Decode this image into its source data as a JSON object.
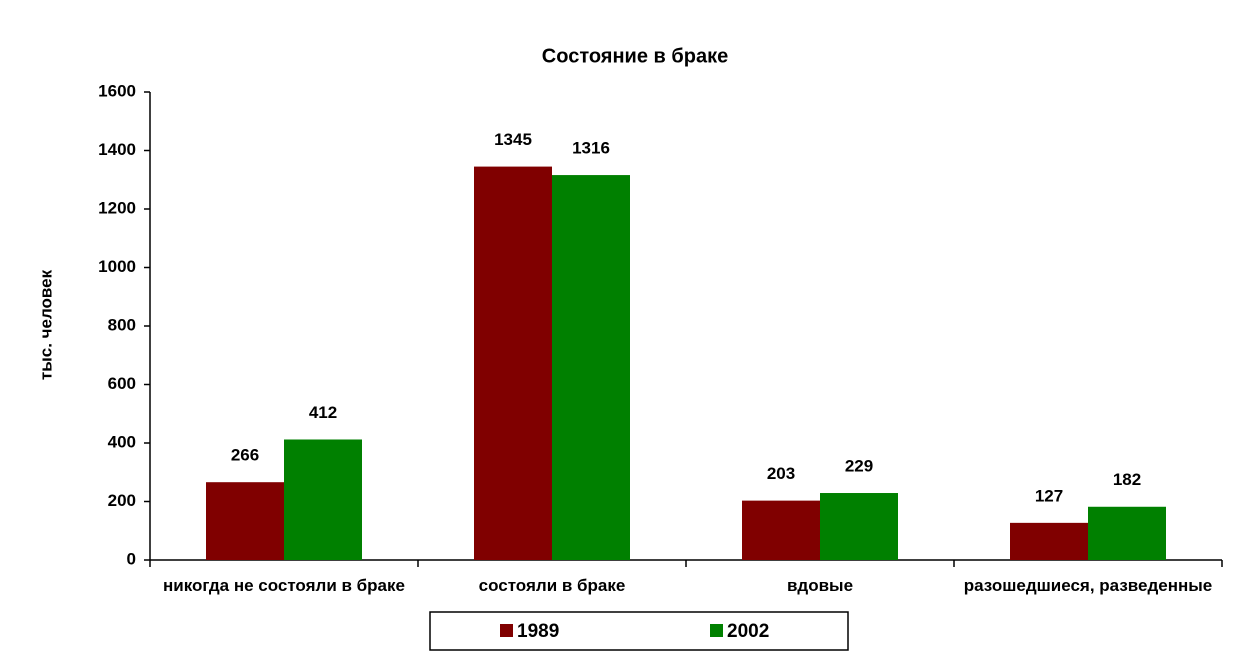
{
  "chart_data": {
    "type": "bar",
    "title": "Состояние в браке",
    "y_label": "тыс. человек",
    "categories": [
      "никогда не состояли в браке",
      "состояли в браке",
      "вдовые",
      "разошедшиеся, разведенные"
    ],
    "series": [
      {
        "name": "1989",
        "color": "#800000",
        "values": [
          266,
          1345,
          203,
          127
        ]
      },
      {
        "name": "2002",
        "color": "#008000",
        "values": [
          412,
          1316,
          229,
          182
        ]
      }
    ],
    "ylim": [
      0,
      1600
    ],
    "yticks": [
      0,
      200,
      400,
      600,
      800,
      1000,
      1200,
      1400,
      1600
    ],
    "grid": false,
    "legend": "bottom"
  }
}
